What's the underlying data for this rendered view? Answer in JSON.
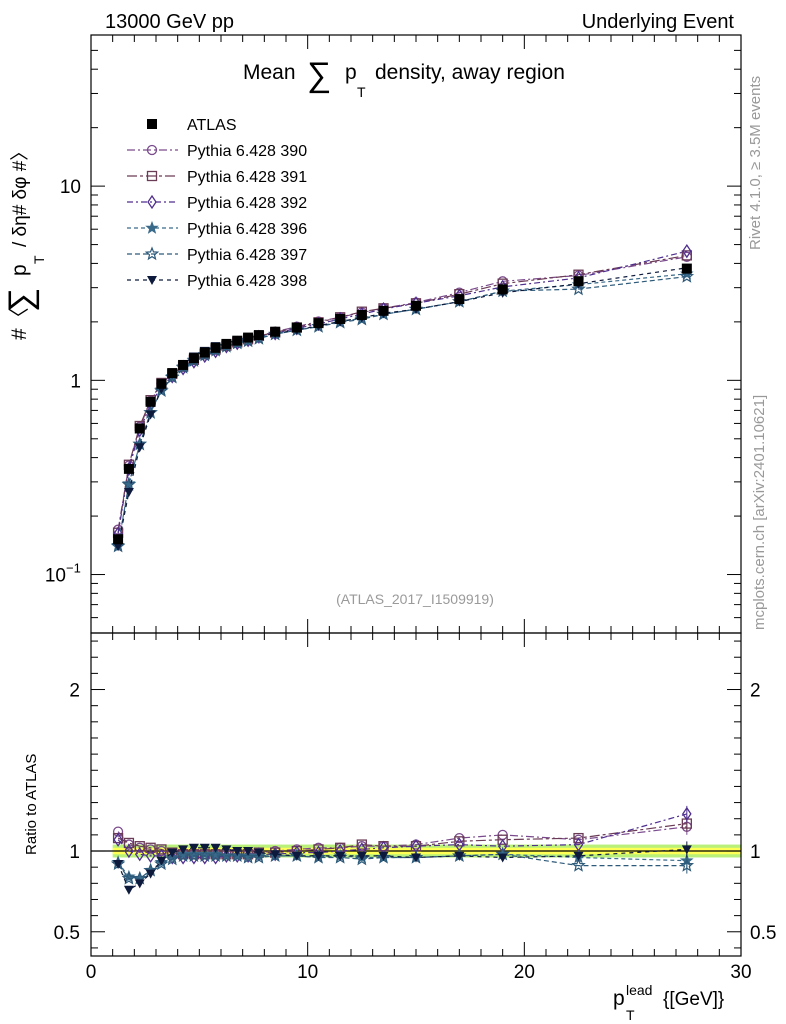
{
  "header": {
    "energy_label": "13000 GeV pp",
    "process_label": "Underlying Event"
  },
  "side_labels": {
    "rivet": "Rivet 4.1.0, ≥ 3.5M events",
    "source": "mcplots.cern.ch [arXiv:2401.10621]"
  },
  "chart_data": {
    "type": "line",
    "title": "Mean ∑ p_T density, away region",
    "title_parts": {
      "prefix": "Mean",
      "sum": "∑",
      "p": "p",
      "sub": "T",
      "suffix": "density, away region"
    },
    "analysis_id": "(ATLAS_2017_I1509919)",
    "ylabel": "#〈 ∑ p_T / δη# δφ #〉",
    "ylabel_parts": {
      "open": "#〈",
      "sum": "∑",
      "p": "p",
      "sub": "T",
      "rest": "/ δη# δφ #〉"
    },
    "xlabel": "p_T^lead {[GeV]}",
    "xlabel_parts": {
      "p": "p",
      "sub": "T",
      "sup": "lead",
      "rest": "{[GeV]}"
    },
    "ratio_ylabel": "Ratio to ATLAS",
    "xlim": [
      0,
      30
    ],
    "ylim": [
      0.05,
      60
    ],
    "yscale": "log",
    "ratio_ylim": [
      0.35,
      2.35
    ],
    "x_ticks": [
      0,
      10,
      20,
      30
    ],
    "y_ticks": [
      {
        "value": 0.1,
        "base": "10",
        "exp": "−1"
      },
      {
        "value": 1,
        "base": "1",
        "exp": ""
      },
      {
        "value": 10,
        "base": "10",
        "exp": ""
      }
    ],
    "ratio_ticks": [
      0.5,
      1,
      2
    ],
    "x": [
      1.25,
      1.75,
      2.25,
      2.75,
      3.25,
      3.75,
      4.25,
      4.75,
      5.25,
      5.75,
      6.25,
      6.75,
      7.25,
      7.75,
      8.5,
      9.5,
      10.5,
      11.5,
      12.5,
      13.5,
      15,
      17,
      19,
      22.5,
      27.5
    ],
    "reference": {
      "name": "ATLAS",
      "color": "#000000",
      "values": [
        0.152,
        0.35,
        0.565,
        0.775,
        0.96,
        1.09,
        1.2,
        1.3,
        1.39,
        1.47,
        1.54,
        1.6,
        1.66,
        1.71,
        1.78,
        1.87,
        1.97,
        2.07,
        2.17,
        2.28,
        2.42,
        2.62,
        2.94,
        3.24,
        3.76
      ]
    },
    "series": [
      {
        "name": "Pythia 6.428 390",
        "color": "#7a4a8c",
        "marker": "circle-open",
        "dash": "8,3,2,3",
        "ratios": [
          1.12,
          1.04,
          1.02,
          1.01,
          1.0,
          0.99,
          0.98,
          0.98,
          0.98,
          0.98,
          0.98,
          0.98,
          0.98,
          0.99,
          1.0,
          1.01,
          1.02,
          1.02,
          1.03,
          1.03,
          1.04,
          1.08,
          1.1,
          1.07,
          1.15
        ]
      },
      {
        "name": "Pythia 6.428 391",
        "color": "#6a3b55",
        "marker": "square-open",
        "dash": "10,3,3,3",
        "ratios": [
          1.08,
          1.05,
          1.03,
          1.02,
          1.01,
          0.99,
          0.98,
          0.98,
          0.98,
          0.98,
          0.98,
          0.98,
          0.98,
          0.99,
          0.99,
          1.0,
          1.01,
          1.02,
          1.04,
          1.03,
          1.03,
          1.06,
          1.07,
          1.08,
          1.17
        ]
      },
      {
        "name": "Pythia 6.428 392",
        "color": "#4f2f8f",
        "marker": "diamond-open",
        "dash": "6,3,2,3",
        "ratios": [
          1.07,
          1.0,
          0.98,
          0.97,
          0.97,
          0.96,
          0.96,
          0.96,
          0.96,
          0.96,
          0.97,
          0.97,
          0.97,
          0.98,
          0.98,
          0.99,
          0.99,
          1.0,
          1.01,
          1.02,
          1.03,
          1.04,
          1.03,
          1.04,
          1.23
        ]
      },
      {
        "name": "Pythia 6.428 396",
        "color": "#3a6a8a",
        "marker": "star-filled",
        "dash": "4,3",
        "ratios": [
          0.93,
          0.84,
          0.83,
          0.88,
          0.93,
          0.96,
          0.98,
          0.98,
          0.98,
          0.98,
          0.97,
          0.97,
          0.97,
          0.97,
          0.97,
          0.97,
          0.96,
          0.97,
          0.96,
          0.96,
          0.96,
          0.97,
          0.98,
          0.96,
          0.94
        ]
      },
      {
        "name": "Pythia 6.428 397",
        "color": "#2e5a7a",
        "marker": "star-open",
        "dash": "5,3",
        "ratios": [
          0.92,
          0.83,
          0.83,
          0.88,
          0.92,
          0.95,
          0.97,
          0.97,
          0.97,
          0.97,
          0.97,
          0.97,
          0.96,
          0.96,
          0.97,
          0.97,
          0.96,
          0.96,
          0.95,
          0.96,
          0.96,
          0.97,
          0.98,
          0.91,
          0.91
        ]
      },
      {
        "name": "Pythia 6.428 398",
        "color": "#0e1a3c",
        "marker": "triangle-down",
        "dash": "4,4",
        "ratios": [
          0.92,
          0.76,
          0.8,
          0.86,
          0.94,
          0.99,
          1.01,
          1.02,
          1.02,
          1.02,
          1.01,
          1.0,
          1.0,
          0.99,
          0.98,
          0.97,
          0.97,
          0.97,
          0.97,
          0.97,
          0.96,
          0.97,
          0.96,
          0.97,
          1.01
        ]
      }
    ],
    "ratio_band": {
      "center": 1.0,
      "inner_halfwidth": 0.02,
      "outer_halfwidth": 0.04,
      "inner_color": "#ffff55",
      "outer_color": "#b8f07a"
    },
    "legend_placement": "top-left"
  }
}
